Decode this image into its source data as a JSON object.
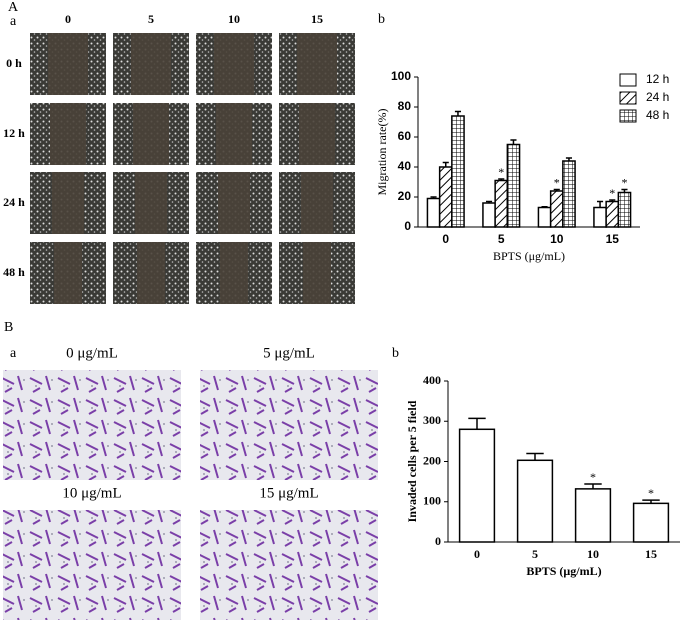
{
  "panels": {
    "A": "A",
    "Aa": "a",
    "Ab": "b",
    "B": "B",
    "Ba": "a",
    "Bb": "b"
  },
  "wound_images": {
    "columns": [
      "0",
      "5",
      "10",
      "15"
    ],
    "rows": [
      "0 h",
      "12 h",
      "24 h",
      "48 h"
    ]
  },
  "transwell_images": {
    "labels": [
      "0 μg/mL",
      "5 μg/mL",
      "10 μg/mL",
      "15 μg/mL"
    ]
  },
  "chart_data": [
    {
      "type": "bar",
      "categories": [
        "0",
        "5",
        "10",
        "15"
      ],
      "xlabel": "BPTS (μg/mL)",
      "ylabel": "Migration rate(%)",
      "ylim": [
        0,
        100
      ],
      "yticks": [
        0,
        20,
        40,
        60,
        80,
        100
      ],
      "legend": "top-right",
      "series": [
        {
          "name": "12 h",
          "pattern": "none",
          "values": [
            19,
            16,
            13,
            13
          ],
          "errors": [
            1,
            1,
            0.5,
            4
          ],
          "significance": [
            null,
            null,
            null,
            null
          ]
        },
        {
          "name": "24 h",
          "pattern": "hatch",
          "values": [
            40,
            31,
            24,
            17
          ],
          "errors": [
            3,
            1,
            1,
            1
          ],
          "significance": [
            null,
            "*",
            "*",
            "*"
          ]
        },
        {
          "name": "48 h",
          "pattern": "grid",
          "values": [
            74,
            55,
            44,
            23
          ],
          "errors": [
            3,
            3,
            2,
            2
          ],
          "significance": [
            null,
            null,
            null,
            "*"
          ]
        }
      ]
    },
    {
      "type": "bar",
      "categories": [
        "0",
        "5",
        "10",
        "15"
      ],
      "xlabel": "BPTS (μg/mL)",
      "ylabel": "Invaded cells per 5 field",
      "ylim": [
        0,
        400
      ],
      "yticks": [
        0,
        100,
        200,
        300,
        400
      ],
      "values": [
        280,
        203,
        132,
        96
      ],
      "errors": [
        27,
        17,
        12,
        8
      ],
      "significance": [
        null,
        null,
        "*",
        "*"
      ]
    }
  ]
}
